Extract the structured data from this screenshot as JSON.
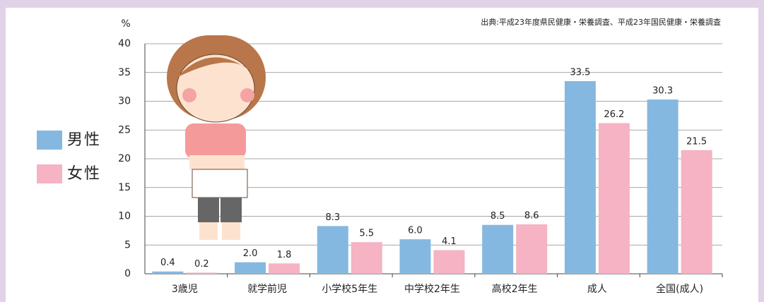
{
  "chart_data": {
    "type": "bar",
    "source": "出典:平成23年度県民健康・栄養調査、平成23年国民健康・栄養調査",
    "y_unit": "%",
    "categories": [
      "3歳児",
      "就学前児",
      "小学校5年生",
      "中学校2年生",
      "高校2年生",
      "成人",
      "全国(成人)"
    ],
    "series": [
      {
        "name": "男性",
        "color": "#85b8e0",
        "values": [
          0.4,
          2.0,
          8.3,
          6.0,
          8.5,
          33.5,
          30.3
        ],
        "value_labels": [
          "0.4",
          "2.0",
          "8.3",
          "6.0",
          "8.5",
          "33.5",
          "30.3"
        ]
      },
      {
        "name": "女性",
        "color": "#f5b3c3",
        "values": [
          0.2,
          1.8,
          5.5,
          4.1,
          8.6,
          26.2,
          21.5
        ],
        "value_labels": [
          "0.2",
          "1.8",
          "5.5",
          "4.1",
          "8.6",
          "26.2",
          "21.5"
        ]
      }
    ],
    "ylim": [
      0,
      40
    ],
    "yticks": [
      0,
      5,
      10,
      15,
      20,
      25,
      30,
      35,
      40
    ],
    "grid": true
  }
}
